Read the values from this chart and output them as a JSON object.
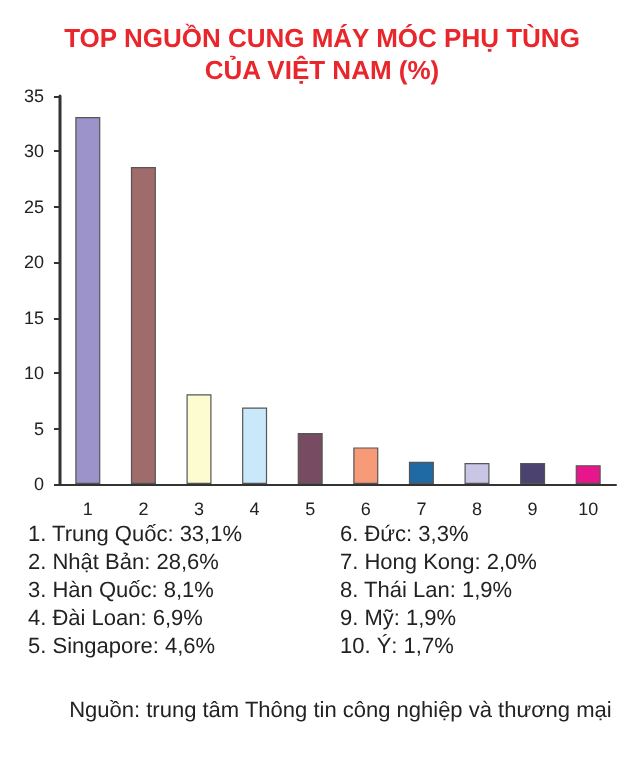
{
  "chart_data": {
    "type": "bar",
    "title": "TOP NGUỒN CUNG MÁY MÓC PHỤ TÙNG\nCỦA VIỆT NAM (%)",
    "categories": [
      "1",
      "2",
      "3",
      "4",
      "5",
      "6",
      "7",
      "8",
      "9",
      "10"
    ],
    "values": [
      33.1,
      28.6,
      8.1,
      6.9,
      4.6,
      3.3,
      2.0,
      1.9,
      1.9,
      1.7
    ],
    "colors": [
      "#9b93c9",
      "#a06b6b",
      "#fdfbd0",
      "#c9e9fb",
      "#774c62",
      "#f69a78",
      "#1f6aa5",
      "#c9c5e4",
      "#4b426f",
      "#e8168c"
    ],
    "ylim": [
      0,
      35
    ],
    "yticks": [
      0,
      5,
      10,
      15,
      20,
      25,
      30,
      35
    ],
    "grid": false,
    "annotations": [
      "1. Trung Quốc: 33,1%",
      "2. Nhật Bản: 28,6%",
      "3. Hàn Quốc: 8,1%",
      "4. Đài Loan: 6,9%",
      "5. Singapore: 4,6%",
      "6. Đức: 3,3%",
      "7. Hong Kong: 2,0%",
      "8. Thái Lan: 1,9%",
      "9. Mỹ: 1,9%",
      "10. Ý: 1,7%",
      "Nguồn: trung tâm Thông tin công nghiệp và thương mại"
    ]
  }
}
